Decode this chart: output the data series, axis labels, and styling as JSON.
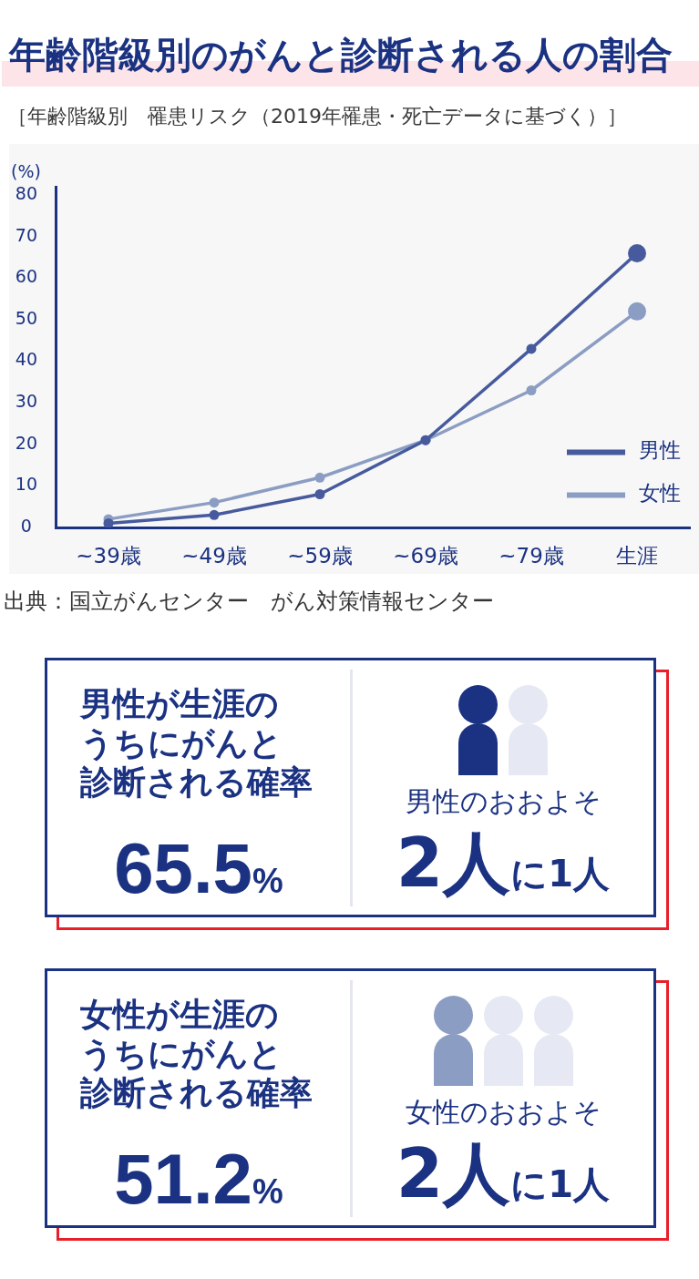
{
  "chart_data": [
    {
      "type": "line",
      "title": "年齢階級別のがんと診断される人の割合",
      "subtitle": "［年齢階級別　罹患リスク（2019年罹患・死亡データに基づく）］",
      "ylabel": "(%)",
      "categories": [
        "~39歳",
        "~49歳",
        "~59歳",
        "~69歳",
        "~79歳",
        "生涯"
      ],
      "series": [
        {
          "name": "男性",
          "color": "#465a9d",
          "values": [
            1,
            3,
            8,
            21,
            43,
            66
          ]
        },
        {
          "name": "女性",
          "color": "#8b9dc3",
          "values": [
            2,
            6,
            12,
            21,
            33,
            52
          ]
        }
      ],
      "ylim": [
        0,
        82
      ],
      "yticks": [
        0,
        10,
        20,
        30,
        40,
        50,
        60,
        70,
        80
      ],
      "legend": "bottom right",
      "marker": "circle",
      "line_style": "solid",
      "annotations": [
        "出典：国立がんセンター　がん対策情報センター"
      ]
    },
    {
      "type": "other",
      "title": "男性が生涯のうちにがんと診断される確率",
      "annotations": [
        "65.5%",
        "男性のおおよそ",
        "2人に1人"
      ]
    },
    {
      "type": "other",
      "title": "女性が生涯のうちにがんと診断される確率",
      "annotations": [
        "51.2%",
        "女性のおおよそ",
        "2人に1人"
      ]
    }
  ]
}
